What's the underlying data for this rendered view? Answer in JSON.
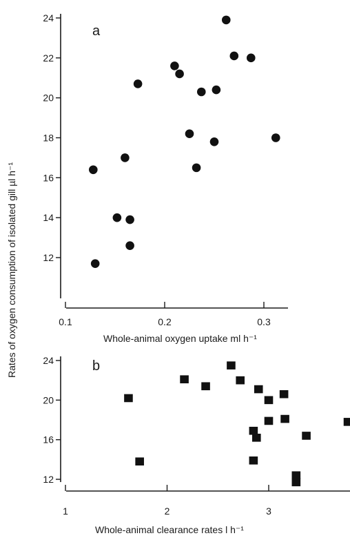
{
  "chart_data": [
    {
      "type": "scatter",
      "panel_label": "a",
      "marker": "circle",
      "xlabel": "Whole-animal oxygen uptake  ml h⁻¹",
      "ylabel": "Rates of oxygen consumption of isolated gill  µl h⁻¹",
      "xlim": [
        0.1,
        0.32
      ],
      "ylim": [
        11,
        24.2
      ],
      "x_ticks": [
        0.1,
        0.2,
        0.3
      ],
      "x_tick_labels": [
        "0.1",
        "0.2",
        "0.3"
      ],
      "y_ticks": [
        12,
        14,
        16,
        18,
        20,
        22,
        24
      ],
      "y_tick_labels": [
        "12",
        "14",
        "16",
        "18",
        "20",
        "22",
        "24"
      ],
      "points": [
        {
          "x": 0.128,
          "y": 16.4
        },
        {
          "x": 0.13,
          "y": 11.7
        },
        {
          "x": 0.152,
          "y": 14.0
        },
        {
          "x": 0.16,
          "y": 17.0
        },
        {
          "x": 0.165,
          "y": 13.9
        },
        {
          "x": 0.165,
          "y": 12.6
        },
        {
          "x": 0.173,
          "y": 20.7
        },
        {
          "x": 0.21,
          "y": 21.6
        },
        {
          "x": 0.215,
          "y": 21.2
        },
        {
          "x": 0.225,
          "y": 18.2
        },
        {
          "x": 0.232,
          "y": 16.5
        },
        {
          "x": 0.237,
          "y": 20.3
        },
        {
          "x": 0.25,
          "y": 17.8
        },
        {
          "x": 0.252,
          "y": 20.4
        },
        {
          "x": 0.262,
          "y": 23.9
        },
        {
          "x": 0.27,
          "y": 22.1
        },
        {
          "x": 0.287,
          "y": 22.0
        },
        {
          "x": 0.312,
          "y": 18.0
        }
      ]
    },
    {
      "type": "scatter",
      "panel_label": "b",
      "marker": "square",
      "xlabel": "Whole-animal clearance rates  l h⁻¹",
      "ylabel": "",
      "xlim": [
        1,
        3.8
      ],
      "ylim": [
        11,
        24.2
      ],
      "x_ticks": [
        1,
        2,
        3
      ],
      "x_tick_labels": [
        "1",
        "2",
        "3"
      ],
      "y_ticks": [
        12,
        16,
        20,
        24
      ],
      "y_tick_labels": [
        "12",
        "16",
        "20",
        "24"
      ],
      "points": [
        {
          "x": 1.62,
          "y": 20.2
        },
        {
          "x": 1.73,
          "y": 13.8
        },
        {
          "x": 2.17,
          "y": 22.1
        },
        {
          "x": 2.38,
          "y": 21.4
        },
        {
          "x": 2.63,
          "y": 23.5
        },
        {
          "x": 2.72,
          "y": 22.0
        },
        {
          "x": 2.85,
          "y": 16.9
        },
        {
          "x": 2.85,
          "y": 13.9
        },
        {
          "x": 2.88,
          "y": 16.2
        },
        {
          "x": 2.9,
          "y": 21.1
        },
        {
          "x": 3.0,
          "y": 20.0
        },
        {
          "x": 3.0,
          "y": 17.9
        },
        {
          "x": 3.15,
          "y": 20.6
        },
        {
          "x": 3.16,
          "y": 18.1
        },
        {
          "x": 3.27,
          "y": 12.4
        },
        {
          "x": 3.27,
          "y": 11.7
        },
        {
          "x": 3.37,
          "y": 16.4
        },
        {
          "x": 3.78,
          "y": 17.8
        }
      ]
    }
  ]
}
